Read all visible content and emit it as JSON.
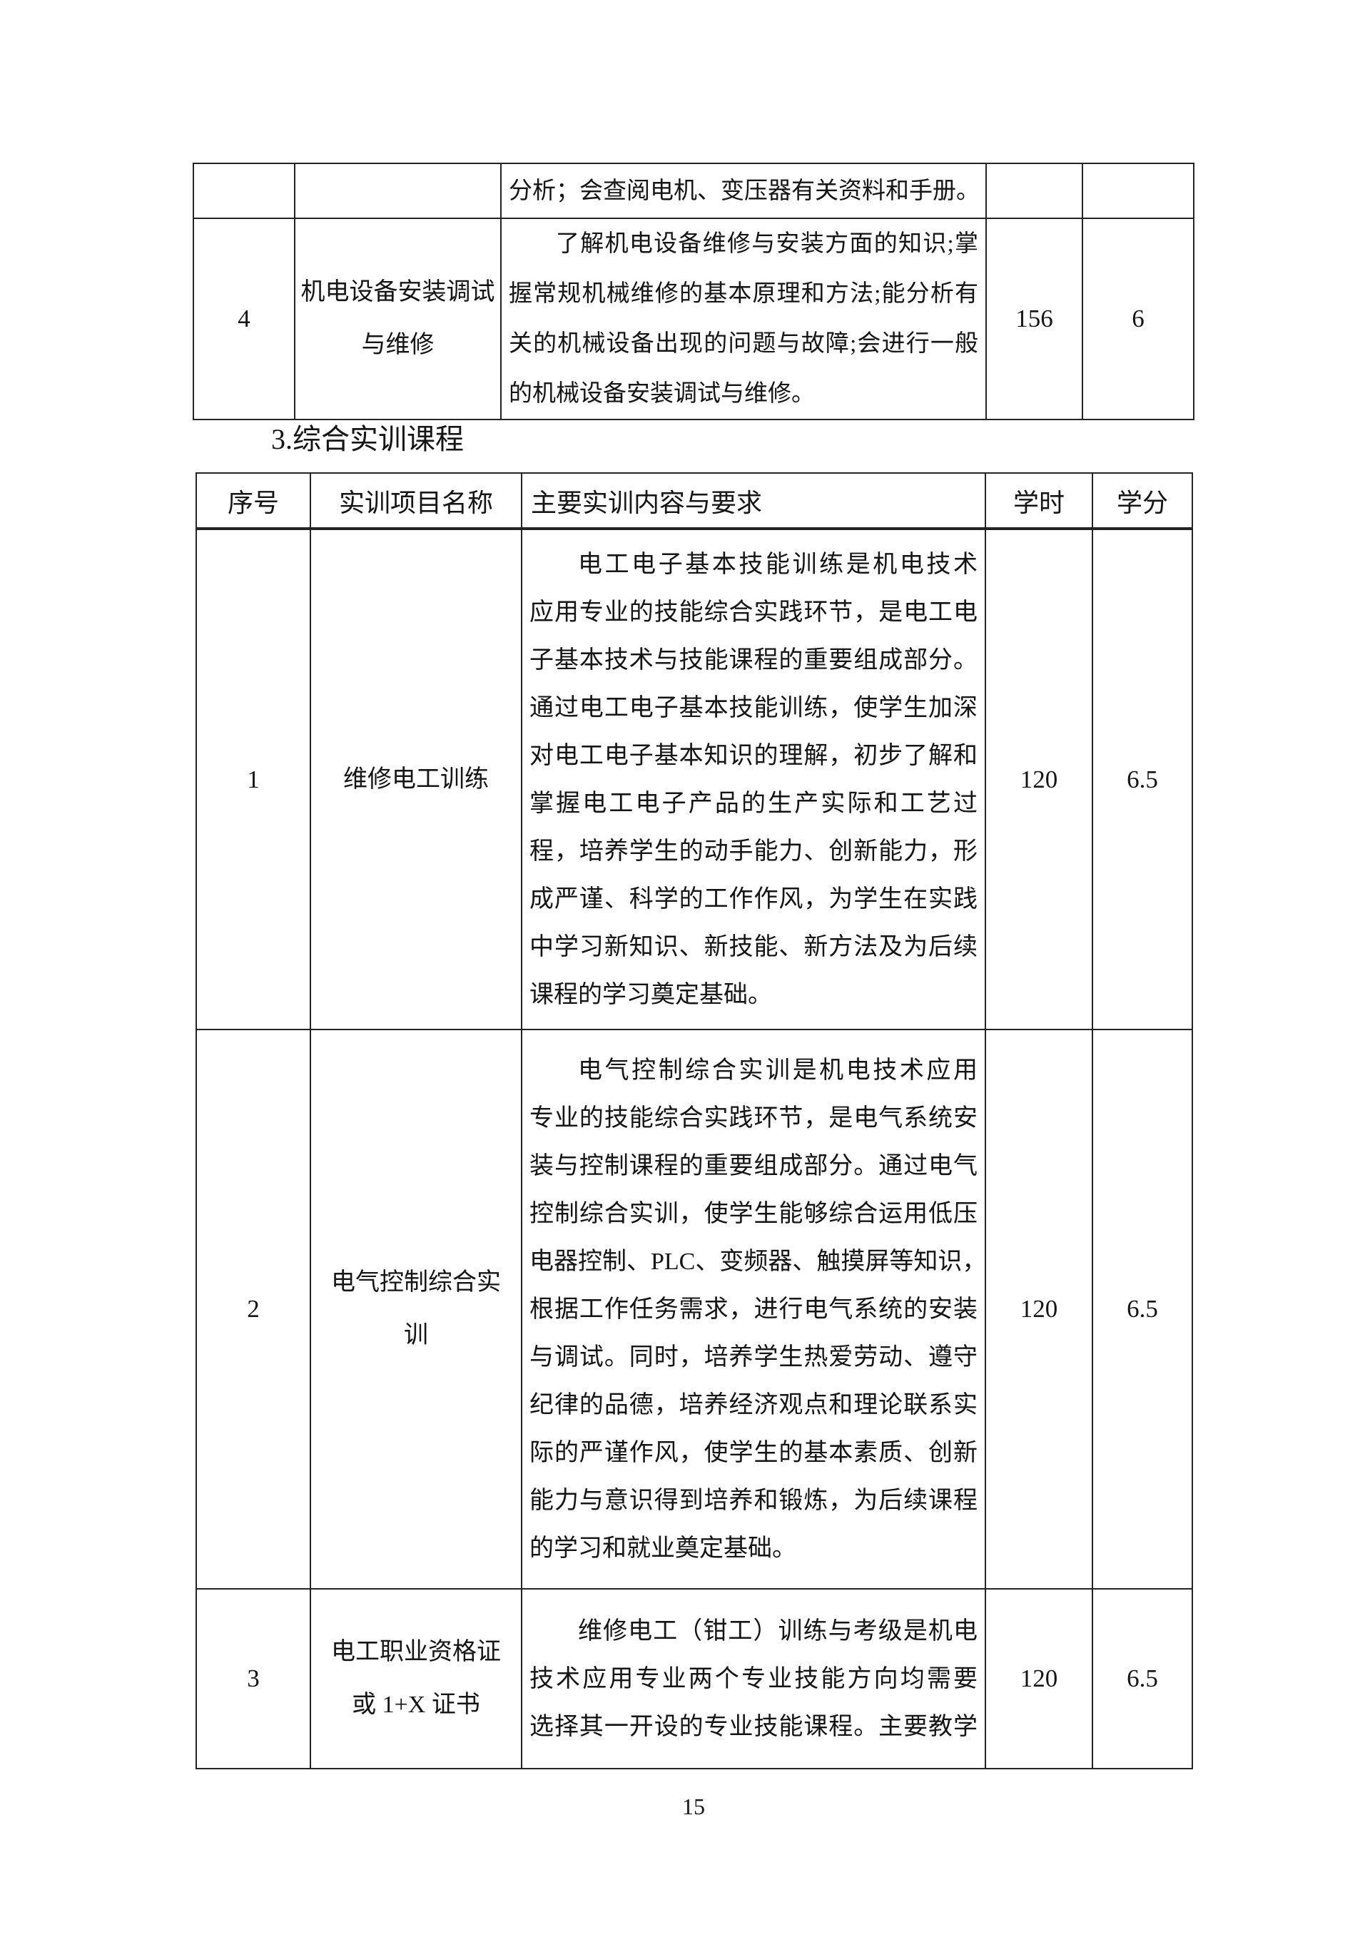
{
  "colors": {
    "text": "#151515",
    "border": "#242424",
    "background": "#ffffff"
  },
  "section_heading": "3.综合实训课程",
  "page_number": "15",
  "table_continuation": {
    "rows": [
      {
        "seq": "",
        "name_lines": [],
        "content_lines": [
          {
            "text": "分析；会查阅电机、变压器有关资料和手册。",
            "indent": false,
            "fill": true
          }
        ],
        "hours": "",
        "credits": ""
      },
      {
        "seq": "4",
        "name_lines": [
          "机电设备安装调试",
          "与维修"
        ],
        "content_lines": [
          {
            "text": "了解机电设备维修与安装方面的知识;掌",
            "indent": true,
            "fill": true
          },
          {
            "text": "握常规机械维修的基本原理和方法;能分析有",
            "indent": false,
            "fill": true
          },
          {
            "text": "关的机械设备出现的问题与故障;会进行一般",
            "indent": false,
            "fill": true
          },
          {
            "text": "的机械设备安装调试与维修。",
            "indent": false,
            "fill": false
          }
        ],
        "hours": "156",
        "credits": "6"
      }
    ]
  },
  "training_table": {
    "headers": [
      "序号",
      "实训项目名称",
      "主要实训内容与要求",
      "学时",
      "学分"
    ],
    "rows": [
      {
        "seq": "1",
        "name_lines": [
          "维修电工训练"
        ],
        "content_lines": [
          {
            "text": "电工电子基本技能训练是机电技术",
            "indent": true,
            "fill": true
          },
          {
            "text": "应用专业的技能综合实践环节，是电工电",
            "indent": false,
            "fill": true
          },
          {
            "text": "子基本技术与技能课程的重要组成部分。",
            "indent": false,
            "fill": true
          },
          {
            "text": "通过电工电子基本技能训练，使学生加深",
            "indent": false,
            "fill": true
          },
          {
            "text": "对电工电子基本知识的理解，初步了解和",
            "indent": false,
            "fill": true
          },
          {
            "text": "掌握电工电子产品的生产实际和工艺过",
            "indent": false,
            "fill": true
          },
          {
            "text": "程，培养学生的动手能力、创新能力，形",
            "indent": false,
            "fill": true
          },
          {
            "text": "成严谨、科学的工作作风，为学生在实践",
            "indent": false,
            "fill": true
          },
          {
            "text": "中学习新知识、新技能、新方法及为后续",
            "indent": false,
            "fill": true
          },
          {
            "text": "课程的学习奠定基础。",
            "indent": false,
            "fill": false
          }
        ],
        "hours": "120",
        "credits": "6.5"
      },
      {
        "seq": "2",
        "name_lines": [
          "电气控制综合实",
          "训"
        ],
        "content_lines": [
          {
            "text": "电气控制综合实训是机电技术应用",
            "indent": true,
            "fill": true
          },
          {
            "text": "专业的技能综合实践环节，是电气系统安",
            "indent": false,
            "fill": true
          },
          {
            "text": "装与控制课程的重要组成部分。通过电气",
            "indent": false,
            "fill": true
          },
          {
            "text": "控制综合实训，使学生能够综合运用低压",
            "indent": false,
            "fill": true
          },
          {
            "text": "电器控制、PLC、变频器、触摸屏等知识，",
            "indent": false,
            "fill": true
          },
          {
            "text": "根据工作任务需求，进行电气系统的安装",
            "indent": false,
            "fill": true
          },
          {
            "text": "与调试。同时，培养学生热爱劳动、遵守",
            "indent": false,
            "fill": true
          },
          {
            "text": "纪律的品德，培养经济观点和理论联系实",
            "indent": false,
            "fill": true
          },
          {
            "text": "际的严谨作风，使学生的基本素质、创新",
            "indent": false,
            "fill": true
          },
          {
            "text": "能力与意识得到培养和锻炼，为后续课程",
            "indent": false,
            "fill": true
          },
          {
            "text": "的学习和就业奠定基础。",
            "indent": false,
            "fill": false
          }
        ],
        "hours": "120",
        "credits": "6.5"
      },
      {
        "seq": "3",
        "name_lines": [
          "电工职业资格证",
          "或 1+X 证书"
        ],
        "content_lines": [
          {
            "text": "维修电工（钳工）训练与考级是机电",
            "indent": true,
            "fill": true
          },
          {
            "text": "技术应用专业两个专业技能方向均需要",
            "indent": false,
            "fill": true
          },
          {
            "text": "选择其一开设的专业技能课程。主要教学",
            "indent": false,
            "fill": true
          }
        ],
        "hours": "120",
        "credits": "6.5"
      }
    ]
  }
}
